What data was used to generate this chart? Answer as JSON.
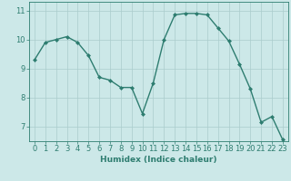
{
  "x": [
    0,
    1,
    2,
    3,
    4,
    5,
    6,
    7,
    8,
    9,
    10,
    11,
    12,
    13,
    14,
    15,
    16,
    17,
    18,
    19,
    20,
    21,
    22,
    23
  ],
  "y": [
    9.3,
    9.9,
    10.0,
    10.1,
    9.9,
    9.45,
    8.7,
    8.6,
    8.35,
    8.35,
    7.45,
    8.5,
    10.0,
    10.85,
    10.9,
    10.9,
    10.85,
    10.4,
    9.95,
    9.15,
    8.3,
    7.15,
    7.35,
    6.55
  ],
  "line_color": "#2e7d70",
  "marker": "D",
  "marker_size": 2,
  "bg_color": "#cce8e8",
  "grid_color": "#aacccc",
  "xlabel": "Humidex (Indice chaleur)",
  "xlim": [
    -0.5,
    23.5
  ],
  "ylim": [
    6.5,
    11.3
  ],
  "yticks": [
    7,
    8,
    9,
    10,
    11
  ],
  "xticks": [
    0,
    1,
    2,
    3,
    4,
    5,
    6,
    7,
    8,
    9,
    10,
    11,
    12,
    13,
    14,
    15,
    16,
    17,
    18,
    19,
    20,
    21,
    22,
    23
  ],
  "label_fontsize": 6.5,
  "tick_fontsize": 6,
  "line_width": 1.0
}
